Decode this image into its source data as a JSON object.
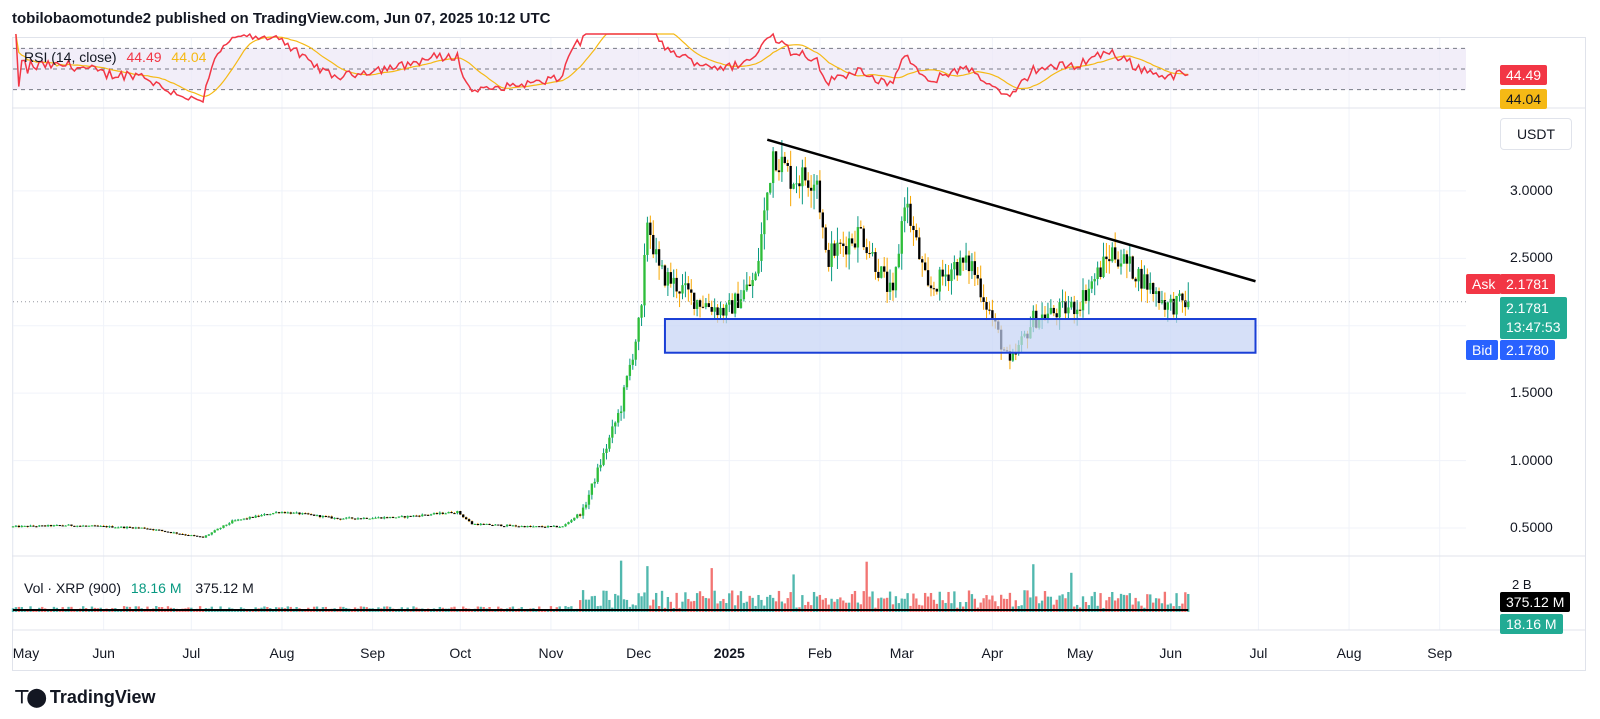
{
  "header": {
    "text": "tobilobaomotunde2 published on TradingView.com, Jun 07, 2025 10:12 UTC"
  },
  "rsi": {
    "label": "RSI (14, close)",
    "value": "44.49",
    "ma": "44.04",
    "value_color": "#f23645",
    "ma_color": "#f5b915",
    "band_color": "#ede7f6"
  },
  "volume": {
    "label": "Vol · XRP (900)",
    "value1": "18.16 M",
    "value2": "375.12 M",
    "scale_label": "2 B",
    "tag_primary": "375.12 M",
    "tag_secondary": "18.16 M"
  },
  "price_axis": {
    "currency": "USDT",
    "ticks": [
      "3.0000",
      "2.5000",
      "1.5000",
      "1.0000",
      "0.5000"
    ],
    "tick_values": [
      3.0,
      2.5,
      1.5,
      1.0,
      0.5
    ]
  },
  "quote": {
    "ask_label": "Ask",
    "ask": "2.1781",
    "last": "2.1781",
    "countdown": "13:47:53",
    "bid_label": "Bid",
    "bid": "2.1780",
    "ask_color": "#f23645",
    "last_color": "#22ab94",
    "bid_color": "#2962ff"
  },
  "time_axis": {
    "labels": [
      "May",
      "Jun",
      "Jul",
      "Aug",
      "Sep",
      "Oct",
      "Nov",
      "Dec",
      "2025",
      "Feb",
      "Mar",
      "Apr",
      "May",
      "Jun",
      "Jul",
      "Aug",
      "Sep"
    ]
  },
  "footer": {
    "brand": "TradingView",
    "icon": "tradingview-logo-icon"
  },
  "chart_data": {
    "type": "candlestick",
    "symbol": "XRP/USDT",
    "ylim": [
      0.3,
      3.6
    ],
    "x_range": [
      "2024-05-01",
      "2025-09-10"
    ],
    "price_path": [
      [
        "2024-05-01",
        0.51
      ],
      [
        "2024-05-20",
        0.52
      ],
      [
        "2024-06-15",
        0.5
      ],
      [
        "2024-07-05",
        0.43
      ],
      [
        "2024-07-15",
        0.55
      ],
      [
        "2024-07-31",
        0.62
      ],
      [
        "2024-08-10",
        0.6
      ],
      [
        "2024-08-20",
        0.57
      ],
      [
        "2024-09-10",
        0.58
      ],
      [
        "2024-09-30",
        0.62
      ],
      [
        "2024-10-05",
        0.53
      ],
      [
        "2024-10-25",
        0.51
      ],
      [
        "2024-11-05",
        0.51
      ],
      [
        "2024-11-12",
        0.63
      ],
      [
        "2024-11-20",
        1.1
      ],
      [
        "2024-11-25",
        1.4
      ],
      [
        "2024-12-02",
        2.1
      ],
      [
        "2024-12-04",
        2.8
      ],
      [
        "2024-12-08",
        2.4
      ],
      [
        "2024-12-20",
        2.2
      ],
      [
        "2024-12-31",
        2.1
      ],
      [
        "2025-01-10",
        2.35
      ],
      [
        "2025-01-16",
        3.3
      ],
      [
        "2025-01-22",
        3.1
      ],
      [
        "2025-01-31",
        3.1
      ],
      [
        "2025-02-03",
        2.5
      ],
      [
        "2025-02-15",
        2.7
      ],
      [
        "2025-02-26",
        2.2
      ],
      [
        "2025-03-02",
        2.95
      ],
      [
        "2025-03-10",
        2.25
      ],
      [
        "2025-03-19",
        2.45
      ],
      [
        "2025-03-25",
        2.45
      ],
      [
        "2025-04-01",
        2.05
      ],
      [
        "2025-04-07",
        1.7
      ],
      [
        "2025-04-15",
        2.05
      ],
      [
        "2025-04-30",
        2.15
      ],
      [
        "2025-05-12",
        2.55
      ],
      [
        "2025-05-20",
        2.4
      ],
      [
        "2025-05-31",
        2.15
      ],
      [
        "2025-06-07",
        2.18
      ]
    ],
    "last_price": 2.1781,
    "ask": 2.1781,
    "bid": 2.178,
    "annotations": [
      {
        "type": "trendline",
        "from": [
          "2025-01-14",
          3.38
        ],
        "to": [
          "2025-06-30",
          2.33
        ],
        "color": "#000000"
      },
      {
        "type": "rectangle",
        "x0": "2024-12-10",
        "x1": "2025-06-30",
        "y0": 1.8,
        "y1": 2.05,
        "fill": "#c5d3f5",
        "stroke": "#1a3fd6"
      }
    ],
    "rsi": {
      "period": 14,
      "value": 44.49,
      "ma": 44.04,
      "upper": 70,
      "lower": 30
    },
    "volume": {
      "label": "Vol · XRP (900)",
      "last": 18.16,
      "ma": 375.12,
      "unit": "M"
    }
  }
}
